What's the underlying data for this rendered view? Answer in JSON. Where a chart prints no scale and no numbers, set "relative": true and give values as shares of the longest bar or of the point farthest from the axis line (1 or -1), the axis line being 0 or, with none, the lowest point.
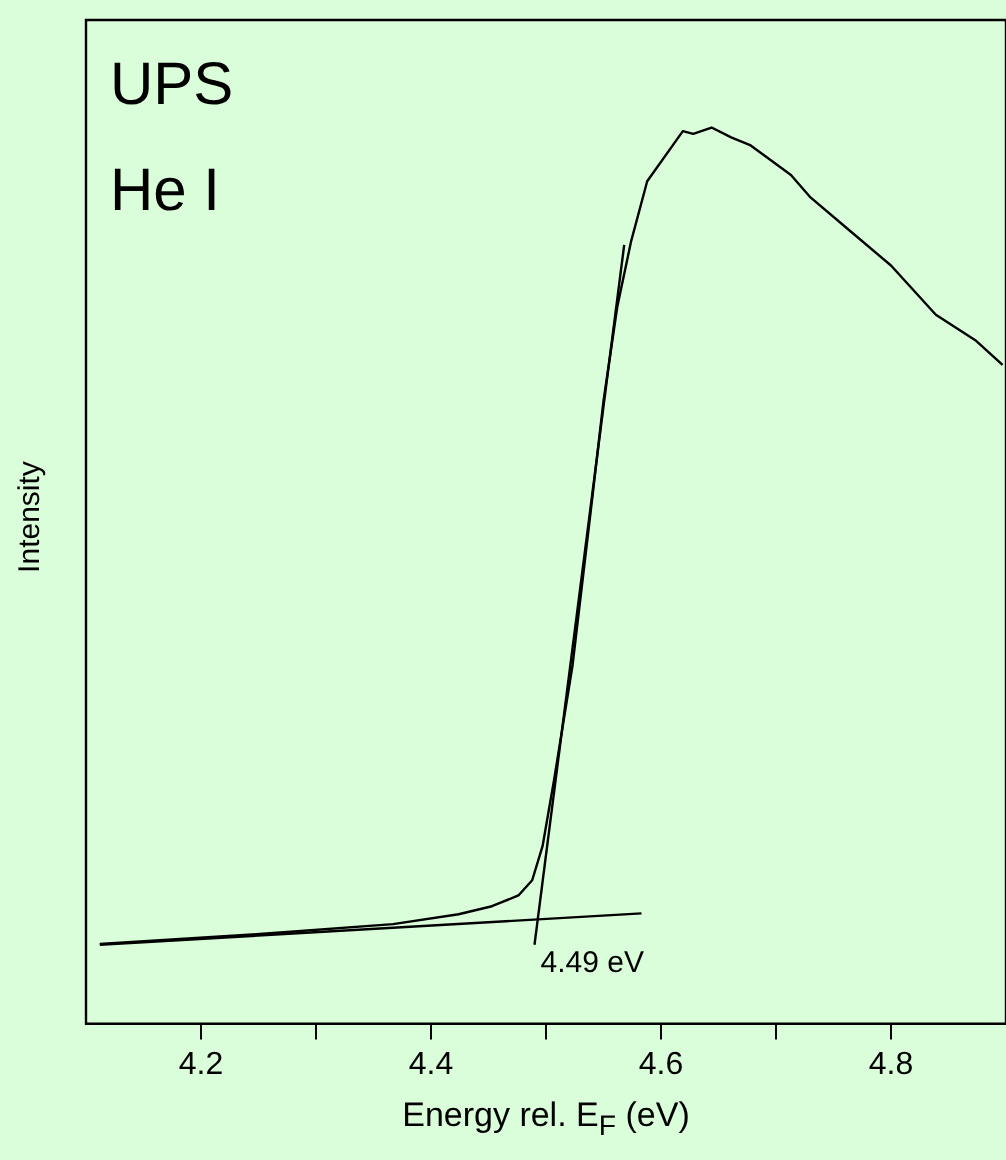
{
  "chart_data": {
    "type": "line",
    "relative": true,
    "xlabel": "Energy rel. E$_{F}$ (eV)",
    "ylabel": "Intensity",
    "annotations": [
      "UPS",
      "He I",
      {
        "text": "4.49 eV",
        "x": 4.49,
        "y": 0.09
      }
    ],
    "xlim": [
      4.1,
      4.9
    ],
    "xticks": [
      4.2,
      {
        "value": 4.3,
        "label": null
      },
      4.4,
      {
        "value": 4.5,
        "label": null
      },
      4.6,
      {
        "value": 4.7,
        "label": null
      },
      4.8
    ],
    "grid": false,
    "legend": false,
    "marker": "none",
    "line_style": "solid",
    "series": [
      {
        "color": "#000000",
        "x": [
          4.112,
          4.251,
          4.367,
          4.424,
          4.453,
          4.476,
          4.488,
          4.497,
          4.507,
          4.523,
          4.54,
          4.55,
          4.562,
          4.574,
          4.588,
          4.619,
          4.628,
          4.644,
          4.661,
          4.678,
          4.713,
          4.73,
          4.765,
          4.8,
          4.839,
          4.874,
          4.897
        ],
        "values": [
          0.089,
          0.1,
          0.111,
          0.122,
          0.131,
          0.143,
          0.16,
          0.198,
          0.272,
          0.399,
          0.584,
          0.695,
          0.8,
          0.873,
          0.94,
          0.996,
          0.993,
          1,
          0.989,
          0.98,
          0.947,
          0.922,
          0.884,
          0.846,
          0.791,
          0.762,
          0.735
        ]
      },
      {
        "color": "#000000",
        "x": [
          4.112,
          4.583
        ],
        "values": [
          0.088,
          0.123
        ]
      },
      {
        "color": "#000000",
        "x": [
          4.49,
          4.568
        ],
        "values": [
          0.088,
          0.869
        ]
      }
    ]
  }
}
